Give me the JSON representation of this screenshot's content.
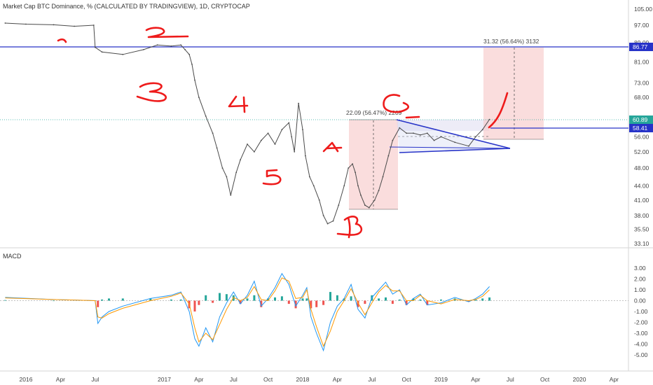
{
  "header": {
    "title": "Market Cap BTC Dominance, % (CALCULATED BY TRADINGVIEW), 1D, CRYPTOCAP"
  },
  "macd_label": "MACD",
  "annotations": {
    "measure1": "22.09 (56.47%) 2209",
    "measure2": "31.32 (56.64%) 3132"
  },
  "price_badges": [
    {
      "value": "86.77",
      "color": "#2733c8"
    },
    {
      "value": "60.89",
      "color": "#26a69a"
    },
    {
      "value": "58.41",
      "color": "#2733c8"
    }
  ],
  "colors": {
    "price_line": "#4a4a4a",
    "blue_lines": "#2733c8",
    "handwriting": "#ee1b1b",
    "macd_line": "#2196f3",
    "signal_line": "#ff9800",
    "hist_up": "#26a69a",
    "hist_down": "#ef5350"
  },
  "chart_data": [
    {
      "type": "line",
      "yscale": "log",
      "y_ticks": [
        "105.00",
        "97.00",
        "89.00",
        "81.00",
        "73.00",
        "68.00",
        "60.00",
        "56.00",
        "52.00",
        "48.00",
        "44.00",
        "41.00",
        "38.00",
        "35.50",
        "33.10"
      ],
      "x_ticks": [
        "2016",
        "Apr",
        "Jul",
        "2017",
        "Apr",
        "Jul",
        "Oct",
        "2018",
        "Apr",
        "Jul",
        "Oct",
        "2019",
        "Apr",
        "Jul",
        "Oct",
        "2020",
        "Apr"
      ],
      "ylim": [
        32.5,
        108
      ],
      "series": [
        {
          "x": [
            2015.85,
            2016.0,
            2016.2,
            2016.35,
            2016.49,
            2016.5,
            2016.55,
            2016.7,
            2016.85,
            2016.95,
            2017.05,
            2017.12,
            2017.15,
            2017.18,
            2017.2,
            2017.22,
            2017.25,
            2017.3,
            2017.35,
            2017.38,
            2017.42,
            2017.45,
            2017.48,
            2017.52,
            2017.55,
            2017.6,
            2017.65,
            2017.7,
            2017.75,
            2017.8,
            2017.85,
            2017.9,
            2017.92,
            2017.94,
            2017.97,
            2018.0,
            2018.02,
            2018.05,
            2018.08,
            2018.12,
            2018.15,
            2018.18,
            2018.22,
            2018.26,
            2018.3,
            2018.33,
            2018.36,
            2018.38,
            2018.4,
            2018.42,
            2018.45,
            2018.48,
            2018.52,
            2018.55,
            2018.58,
            2018.62,
            2018.65,
            2018.7,
            2018.75,
            2018.8,
            2018.85,
            2018.9,
            2018.95,
            2019.0,
            2019.1,
            2019.2,
            2019.25,
            2019.3,
            2019.35
          ],
          "values": [
            98,
            97.5,
            97.2,
            96.5,
            97,
            87,
            85,
            84,
            86,
            88,
            87.5,
            88,
            86,
            84,
            80,
            74,
            68,
            62,
            57,
            53,
            48,
            46,
            42,
            47,
            50,
            54,
            52,
            55,
            57,
            54,
            58,
            60,
            56,
            52,
            66,
            58,
            51,
            46,
            44,
            41,
            38,
            36.5,
            37,
            40,
            44,
            48,
            49,
            47,
            44,
            42,
            40,
            39.5,
            41,
            43,
            46,
            51,
            55,
            58.5,
            57,
            57,
            56.5,
            57,
            55,
            56,
            54.5,
            53.5,
            56,
            58,
            61
          ]
        }
      ]
    },
    {
      "type": "line",
      "title": "MACD",
      "y_ticks": [
        "3.00",
        "2.00",
        "1.00",
        "0.00",
        "-1.00",
        "-2.00",
        "-3.00",
        "-4.00",
        "-5.00"
      ],
      "ylim": [
        -5.3,
        3.4
      ],
      "series": [
        {
          "x": [
            2015.85,
            2016.2,
            2016.5,
            2016.52,
            2016.55,
            2016.6,
            2016.7,
            2016.9,
            2017.05,
            2017.12,
            2017.18,
            2017.22,
            2017.25,
            2017.3,
            2017.35,
            2017.4,
            2017.45,
            2017.5,
            2017.55,
            2017.6,
            2017.65,
            2017.7,
            2017.75,
            2017.8,
            2017.85,
            2017.9,
            2017.95,
            2018.0,
            2018.03,
            2018.06,
            2018.1,
            2018.15,
            2018.2,
            2018.25,
            2018.3,
            2018.35,
            2018.4,
            2018.45,
            2018.5,
            2018.55,
            2018.6,
            2018.65,
            2018.7,
            2018.75,
            2018.8,
            2018.85,
            2018.9,
            2019.0,
            2019.1,
            2019.2,
            2019.25,
            2019.3,
            2019.35
          ],
          "values": [
            0.3,
            0.1,
            0.0,
            -2.1,
            -1.5,
            -1.0,
            -0.5,
            0.2,
            0.5,
            0.8,
            -1.0,
            -3.5,
            -4.2,
            -2.5,
            -3.8,
            -1.5,
            -0.2,
            0.8,
            -0.3,
            0.5,
            1.8,
            -0.5,
            0.2,
            1.2,
            2.5,
            1.5,
            -0.5,
            0.5,
            1.2,
            -1.5,
            -3.0,
            -4.6,
            -2.0,
            -0.5,
            0.2,
            1.5,
            -0.8,
            -1.6,
            0.3,
            1.0,
            1.7,
            0.6,
            1.0,
            -0.4,
            0.2,
            0.6,
            -0.4,
            -0.2,
            0.3,
            -0.1,
            0.2,
            0.6,
            1.3
          ]
        },
        {
          "x": [
            2015.85,
            2016.2,
            2016.5,
            2016.52,
            2016.55,
            2016.6,
            2016.7,
            2016.9,
            2017.05,
            2017.12,
            2017.18,
            2017.22,
            2017.25,
            2017.3,
            2017.35,
            2017.4,
            2017.45,
            2017.5,
            2017.55,
            2017.6,
            2017.65,
            2017.7,
            2017.75,
            2017.8,
            2017.85,
            2017.9,
            2017.95,
            2018.0,
            2018.03,
            2018.06,
            2018.1,
            2018.15,
            2018.2,
            2018.25,
            2018.3,
            2018.35,
            2018.4,
            2018.45,
            2018.5,
            2018.55,
            2018.6,
            2018.65,
            2018.7,
            2018.75,
            2018.8,
            2018.85,
            2018.9,
            2019.0,
            2019.1,
            2019.2,
            2019.25,
            2019.3,
            2019.35
          ],
          "values": [
            0.25,
            0.1,
            0.0,
            -1.5,
            -1.6,
            -1.2,
            -0.7,
            0.0,
            0.4,
            0.7,
            -0.3,
            -2.5,
            -3.8,
            -3.0,
            -3.6,
            -2.2,
            -0.8,
            0.3,
            0.0,
            0.3,
            1.3,
            0.1,
            0.0,
            0.9,
            2.1,
            1.8,
            0.2,
            0.3,
            1.0,
            -0.8,
            -2.4,
            -4.2,
            -2.8,
            -1.0,
            0.0,
            1.1,
            -0.2,
            -1.3,
            -0.2,
            0.8,
            1.4,
            0.9,
            0.9,
            0.0,
            0.0,
            0.5,
            0.0,
            -0.3,
            0.1,
            0.0,
            0.1,
            0.4,
            1.0
          ]
        }
      ]
    }
  ]
}
